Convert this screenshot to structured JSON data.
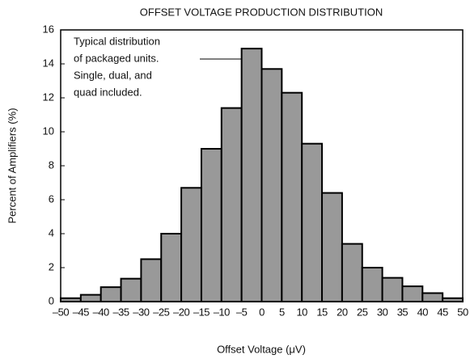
{
  "chart_data": {
    "type": "histogram",
    "title": "OFFSET VOLTAGE PRODUCTION DISTRIBUTION",
    "x_label": "Offset Voltage (μV)",
    "y_label": "Percent of Amplifiers (%)",
    "annotation": [
      "Typical distribution",
      "of packaged units.",
      "Single, dual, and",
      "quad included."
    ],
    "bins": [
      -50,
      -45,
      -40,
      -35,
      -30,
      -25,
      -20,
      -15,
      -10,
      -5,
      0,
      5,
      10,
      15,
      20,
      25,
      30,
      35,
      40,
      45,
      50
    ],
    "counts": [
      0.2,
      0.4,
      0.85,
      1.35,
      2.5,
      4.0,
      6.7,
      9.0,
      11.4,
      14.9,
      13.7,
      12.3,
      9.3,
      6.4,
      3.4,
      2.0,
      1.4,
      0.9,
      0.5,
      0.2
    ],
    "color": "#999999",
    "xlim": [
      -50,
      50
    ],
    "xticks": [
      {
        "value": -50,
        "label": "–50"
      },
      {
        "value": -45,
        "label": "–45"
      },
      {
        "value": -40,
        "label": "–40"
      },
      {
        "value": -35,
        "label": "–35"
      },
      {
        "value": -30,
        "label": "–30"
      },
      {
        "value": -25,
        "label": "–25"
      },
      {
        "value": -20,
        "label": "–20"
      },
      {
        "value": -15,
        "label": "–15"
      },
      {
        "value": -10,
        "label": "–10"
      },
      {
        "value": -5,
        "label": "–5"
      },
      0,
      5,
      10,
      15,
      20,
      25,
      30,
      35,
      40,
      45,
      50
    ],
    "ylim": [
      0,
      16
    ],
    "yticks": [
      0,
      2,
      4,
      6,
      8,
      10,
      12,
      14,
      16
    ]
  }
}
